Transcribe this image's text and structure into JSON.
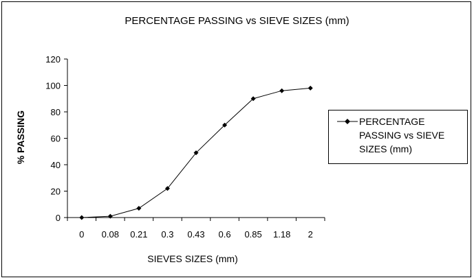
{
  "chart_data": {
    "type": "line",
    "title": "PERCENTAGE PASSING vs SIEVE SIZES (mm)",
    "xlabel": "SIEVES SIZES (mm)",
    "ylabel": "% PASSING",
    "categories": [
      "0",
      "0.08",
      "0.21",
      "0.3",
      "0.43",
      "0.6",
      "0.85",
      "1.18",
      "2"
    ],
    "series": [
      {
        "name": "PERCENTAGE PASSING vs SIEVE SIZES (mm)",
        "values": [
          0,
          1,
          7,
          22,
          49,
          70,
          90,
          96,
          98
        ]
      }
    ],
    "yticks": [
      "0",
      "20",
      "40",
      "60",
      "80",
      "100",
      "120"
    ],
    "ylim": [
      0,
      120
    ],
    "grid": false,
    "legend_position": "right",
    "colors": {
      "line": "#000000",
      "marker": "#000000"
    }
  }
}
